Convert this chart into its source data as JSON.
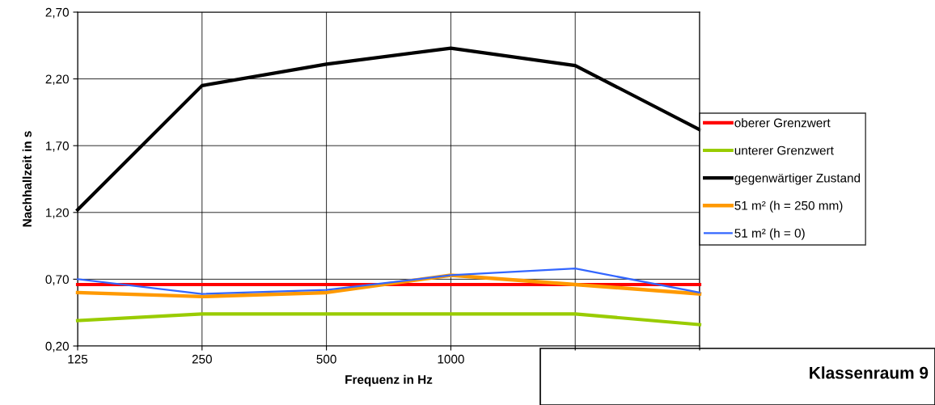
{
  "chart_data": {
    "type": "line",
    "xlabel": "Frequenz in Hz",
    "ylabel": "Nachhallzeit in s",
    "categories": [
      "125",
      "250",
      "500",
      "1000",
      null,
      null
    ],
    "ylim": [
      0.2,
      2.7
    ],
    "yticks": [
      {
        "value": 0.2,
        "label": "0,20"
      },
      {
        "value": 0.7,
        "label": "0,70"
      },
      {
        "value": 1.2,
        "label": "1,20"
      },
      {
        "value": 1.7,
        "label": "1,70"
      },
      {
        "value": 2.2,
        "label": "2,20"
      },
      {
        "value": 2.7,
        "label": "2,70"
      }
    ],
    "grid": true,
    "legend": "right",
    "marker": "none",
    "line_style": "solid",
    "series": [
      {
        "name": "oberer Grenzwert",
        "color": "#ff0000",
        "values": [
          0.66,
          0.66,
          0.66,
          0.66,
          0.66,
          0.66
        ]
      },
      {
        "name": "unterer Grenzwert",
        "color": "#99cc00",
        "values": [
          0.39,
          0.44,
          0.44,
          0.44,
          0.44,
          0.36
        ]
      },
      {
        "name": "gegenwärtiger Zustand",
        "color": "#000000",
        "values": [
          1.22,
          2.15,
          2.31,
          2.43,
          2.3,
          1.82
        ]
      },
      {
        "name": "51 m² (h = 250 mm)",
        "color": "#ff9900",
        "values": [
          0.6,
          0.57,
          0.6,
          0.73,
          0.66,
          0.59
        ]
      },
      {
        "name": "51 m² (h = 0)",
        "color": "#3366ff",
        "values": [
          0.7,
          0.59,
          0.62,
          0.73,
          0.78,
          0.6
        ]
      }
    ],
    "annotations": [
      "Klassenraum 9"
    ]
  }
}
